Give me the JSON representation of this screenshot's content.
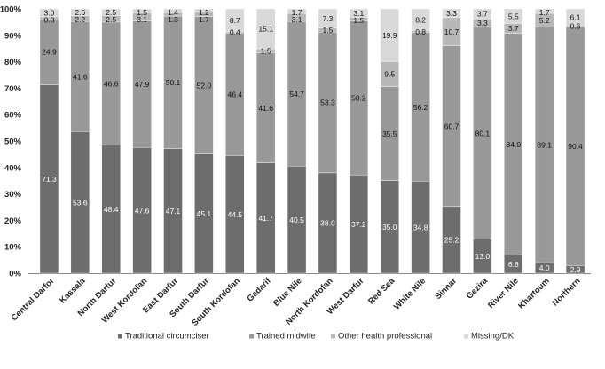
{
  "chart_data": {
    "type": "bar",
    "stacked": true,
    "percent_stacked": true,
    "categories": [
      "Central Darfor",
      "Kassala",
      "North Darfur",
      "West Kordofan",
      "East Darfur",
      "South Darfur",
      "South Kordofan",
      "Gadarif",
      "Blue Nile",
      "North Kordofan",
      "West Darfur",
      "Red Sea",
      "White Nile",
      "Sinnar",
      "Gezira",
      "River Nile",
      "Khartoum",
      "Northern"
    ],
    "series": [
      {
        "name": "Traditional circumciser",
        "color": "#6d6d6d",
        "label_color": "#ffffff",
        "values": [
          71.3,
          53.6,
          48.4,
          47.6,
          47.1,
          45.1,
          44.5,
          41.7,
          40.5,
          38.0,
          37.2,
          35.0,
          34.8,
          25.2,
          13.0,
          6.8,
          4.0,
          2.9
        ]
      },
      {
        "name": "Trained midwife",
        "color": "#999999",
        "label_color": "#111111",
        "values": [
          24.9,
          41.6,
          46.6,
          47.9,
          50.1,
          52.0,
          46.4,
          41.6,
          54.7,
          53.3,
          58.2,
          35.5,
          56.2,
          60.7,
          80.1,
          84.0,
          89.1,
          90.4
        ]
      },
      {
        "name": "Other health professional",
        "color": "#b8b8b8",
        "label_color": "#111111",
        "values": [
          0.8,
          2.2,
          2.5,
          3.1,
          1.3,
          1.7,
          0.4,
          1.5,
          3.1,
          1.5,
          1.5,
          9.5,
          0.8,
          10.7,
          3.3,
          3.7,
          5.2,
          0.6
        ]
      },
      {
        "name": "Missing/DK",
        "color": "#d9d9d9",
        "label_color": "#111111",
        "values": [
          3.0,
          2.6,
          2.5,
          1.5,
          1.4,
          1.2,
          8.7,
          15.1,
          1.7,
          7.3,
          3.1,
          19.9,
          8.2,
          3.3,
          3.7,
          5.5,
          1.7,
          6.1
        ]
      }
    ],
    "y_ticks": [
      "0%",
      "10%",
      "20%",
      "30%",
      "40%",
      "50%",
      "60%",
      "70%",
      "80%",
      "90%",
      "100%"
    ],
    "ylim": [
      0,
      100
    ],
    "grid": false,
    "legend_position": "bottom",
    "title": "",
    "xlabel": "",
    "ylabel": ""
  }
}
